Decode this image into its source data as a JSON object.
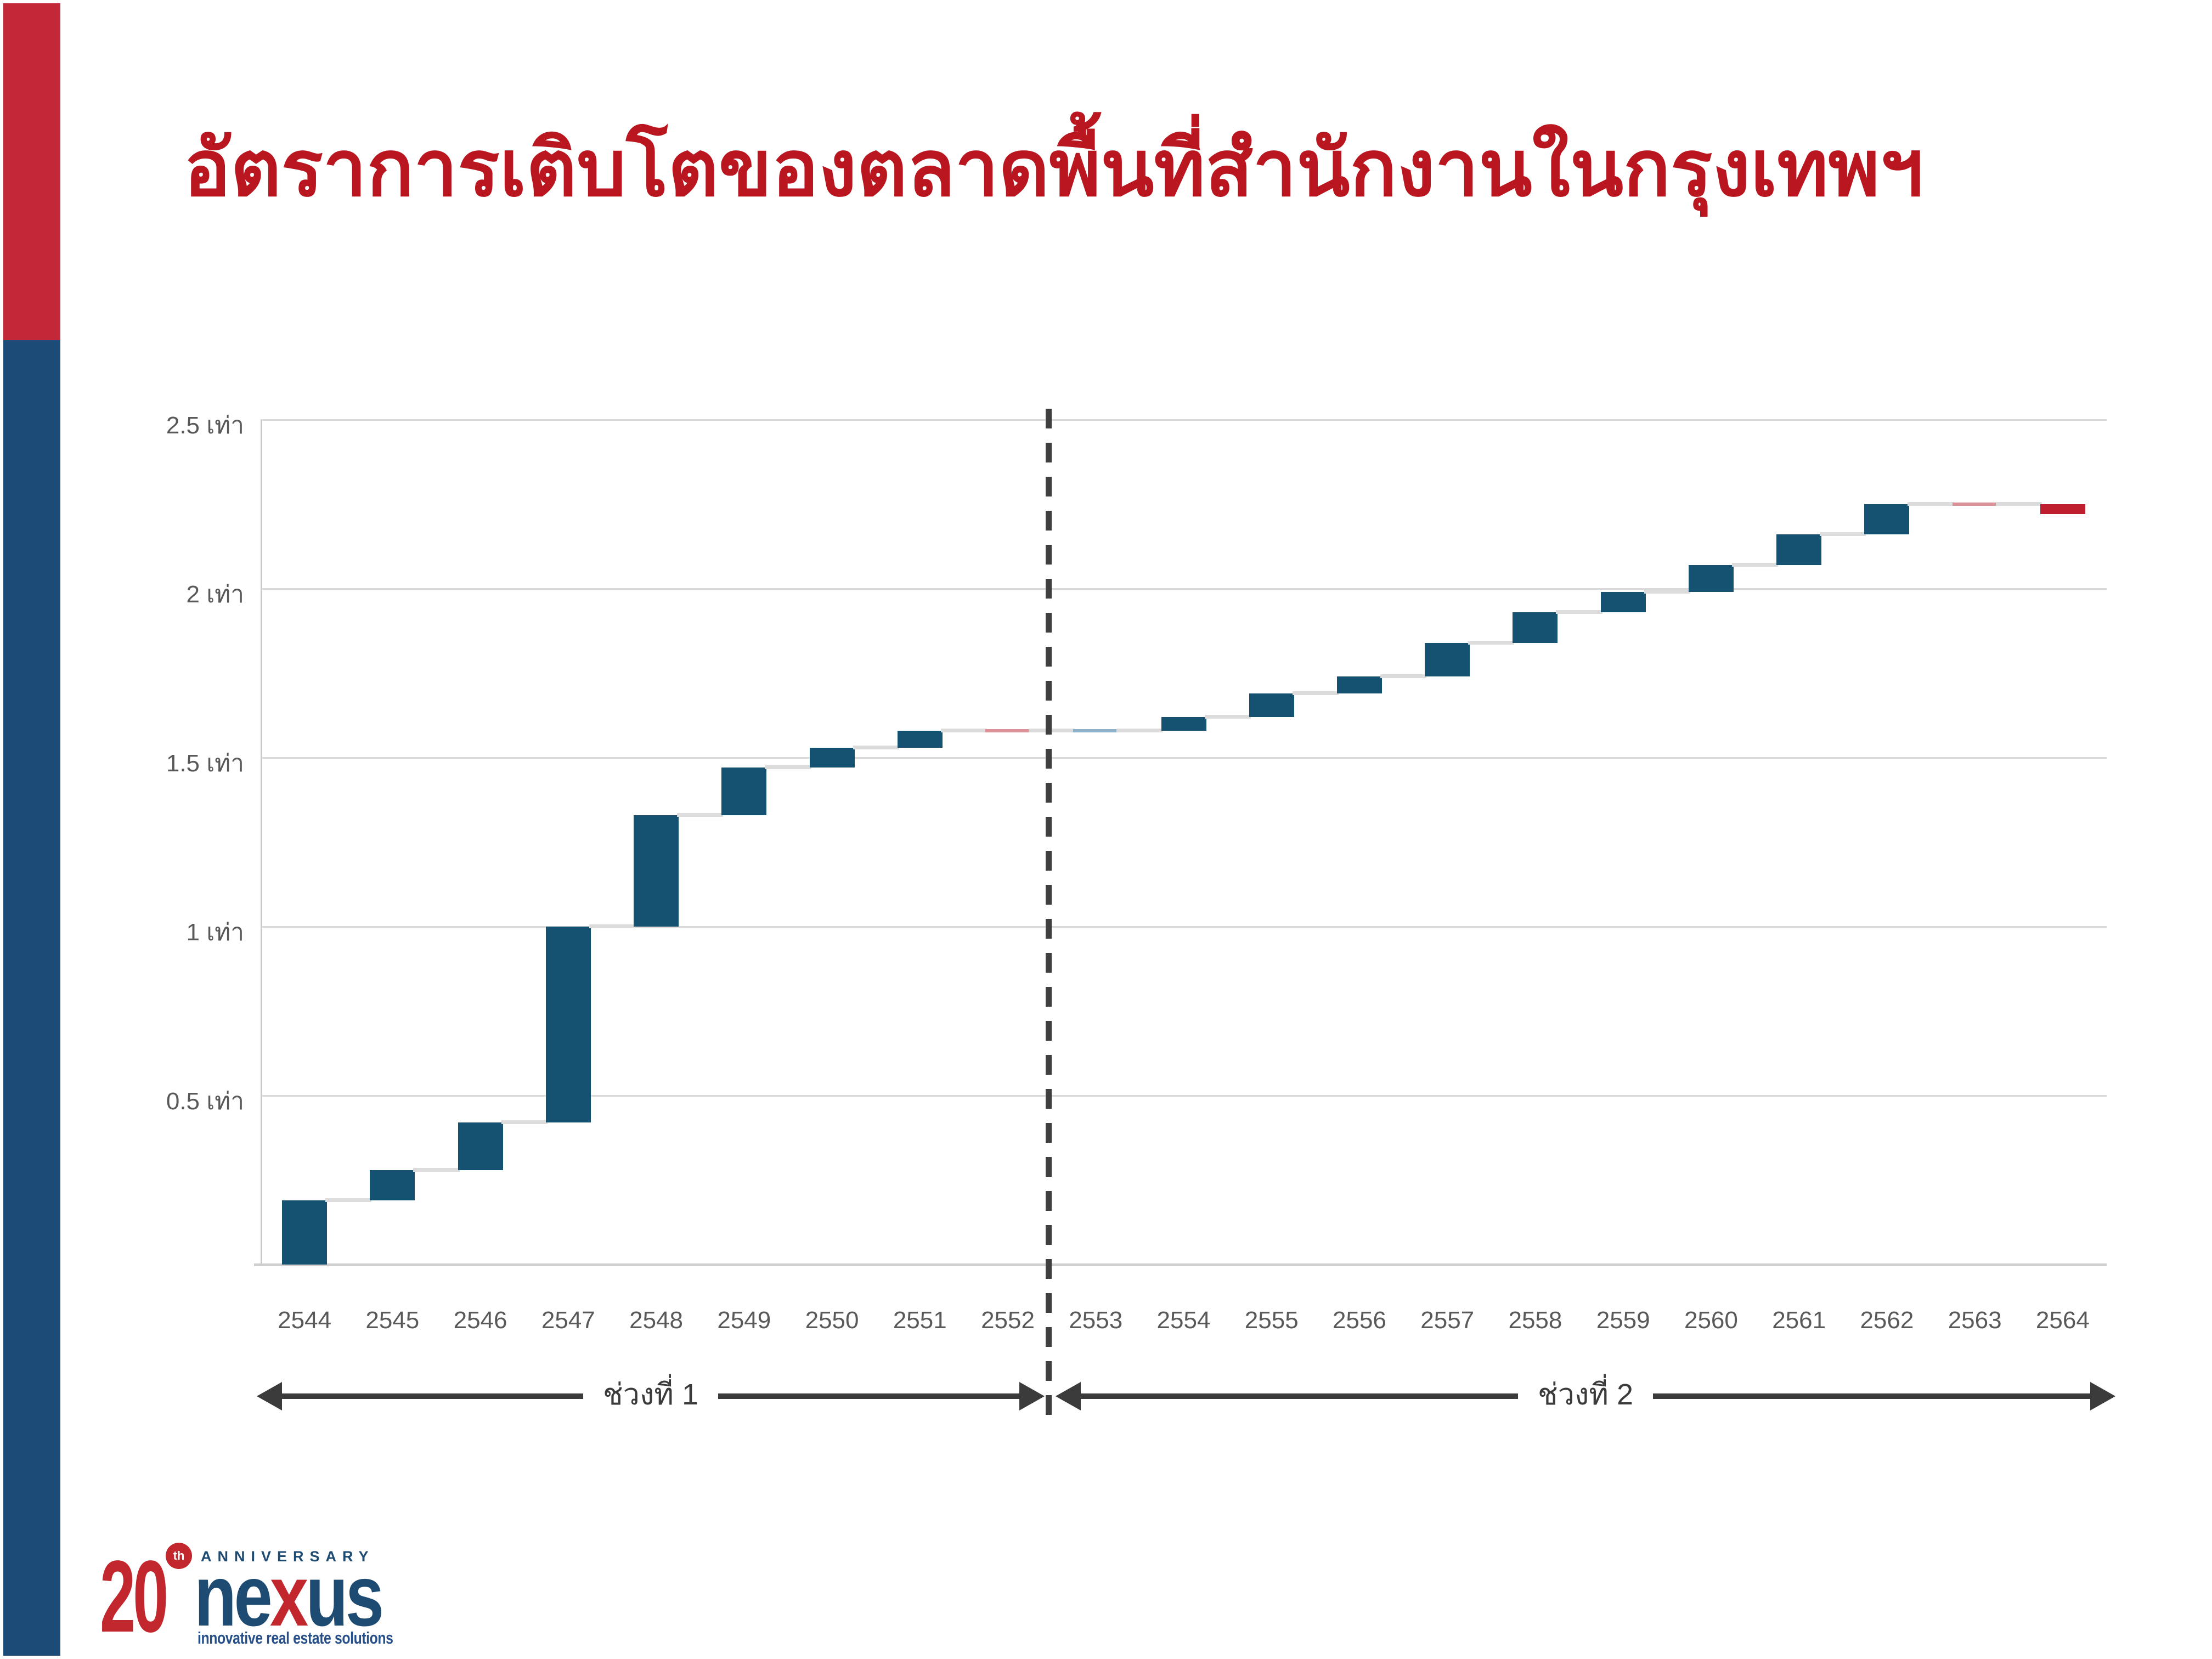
{
  "slide": {
    "title": "อัตราการเติบโตของตลาดพื้นที่สำนักงานในกรุงเทพฯ",
    "title_color": "#b9161f",
    "accent_bar_red": "#c22837",
    "accent_bar_blue": "#1d4b77"
  },
  "chart_data": {
    "type": "bar",
    "subtype": "waterfall",
    "title": "อัตราการเติบโตของตลาดพื้นที่สำนักงานในกรุงเทพฯ",
    "xlabel": "",
    "ylabel": "เท่า",
    "ylim": [
      0,
      2.5
    ],
    "grid": true,
    "y_ticks": [
      {
        "value": 2.5,
        "label": "2.5 เท่า"
      },
      {
        "value": 2.0,
        "label": "2 เท่า"
      },
      {
        "value": 1.5,
        "label": "1.5 เท่า"
      },
      {
        "value": 1.0,
        "label": "1 เท่า"
      },
      {
        "value": 0.5,
        "label": "0.5 เท่า"
      }
    ],
    "categories": [
      "2544",
      "2545",
      "2546",
      "2547",
      "2548",
      "2549",
      "2550",
      "2551",
      "2552",
      "2553",
      "2554",
      "2555",
      "2556",
      "2557",
      "2558",
      "2559",
      "2560",
      "2561",
      "2562",
      "2563",
      "2564"
    ],
    "steps": [
      {
        "year": "2544",
        "start": 0.0,
        "end": 0.19,
        "type": "increase"
      },
      {
        "year": "2545",
        "start": 0.19,
        "end": 0.28,
        "type": "increase"
      },
      {
        "year": "2546",
        "start": 0.28,
        "end": 0.42,
        "type": "increase"
      },
      {
        "year": "2547",
        "start": 0.42,
        "end": 1.0,
        "type": "increase"
      },
      {
        "year": "2548",
        "start": 1.0,
        "end": 1.33,
        "type": "increase"
      },
      {
        "year": "2549",
        "start": 1.33,
        "end": 1.47,
        "type": "increase"
      },
      {
        "year": "2550",
        "start": 1.47,
        "end": 1.53,
        "type": "increase"
      },
      {
        "year": "2551",
        "start": 1.53,
        "end": 1.58,
        "type": "increase"
      },
      {
        "year": "2552",
        "start": 1.58,
        "end": 1.58,
        "type": "flat-red"
      },
      {
        "year": "2553",
        "start": 1.58,
        "end": 1.58,
        "type": "flat-blue"
      },
      {
        "year": "2554",
        "start": 1.58,
        "end": 1.62,
        "type": "increase"
      },
      {
        "year": "2555",
        "start": 1.62,
        "end": 1.69,
        "type": "increase"
      },
      {
        "year": "2556",
        "start": 1.69,
        "end": 1.74,
        "type": "increase"
      },
      {
        "year": "2557",
        "start": 1.74,
        "end": 1.84,
        "type": "increase"
      },
      {
        "year": "2558",
        "start": 1.84,
        "end": 1.93,
        "type": "increase"
      },
      {
        "year": "2559",
        "start": 1.93,
        "end": 1.99,
        "type": "increase"
      },
      {
        "year": "2560",
        "start": 1.99,
        "end": 2.07,
        "type": "increase"
      },
      {
        "year": "2561",
        "start": 2.07,
        "end": 2.16,
        "type": "increase"
      },
      {
        "year": "2562",
        "start": 2.16,
        "end": 2.25,
        "type": "increase"
      },
      {
        "year": "2563",
        "start": 2.25,
        "end": 2.25,
        "type": "flat-red"
      },
      {
        "year": "2564",
        "start": 2.25,
        "end": 2.22,
        "type": "decrease"
      }
    ],
    "divider_between": [
      "2552",
      "2553"
    ],
    "phases": [
      {
        "label": "ช่วงที่ 1",
        "from": "2544",
        "to": "2552"
      },
      {
        "label": "ช่วงที่ 2",
        "from": "2553",
        "to": "2564"
      }
    ],
    "colors": {
      "bar_increase": "#155170",
      "bar_decrease": "#be1e2d",
      "flat_red": "#dc9097",
      "flat_blue": "#8fb0c9",
      "gridline": "#d9d9d9",
      "connector": "#dcdcdc",
      "tick_text": "#595959",
      "divider": "#3f3f3f",
      "arrow": "#3b3b3b"
    },
    "legend": []
  },
  "logo": {
    "number": "20",
    "ordinal": "th",
    "anniversary": "ANNIVERSARY",
    "brand_part1": "ne",
    "brand_part2": "x",
    "brand_part3": "us",
    "tagline": "innovative real estate solutions",
    "red": "#c1272d",
    "blue": "#1e4b72",
    "tagline_blue": "#27508a"
  }
}
